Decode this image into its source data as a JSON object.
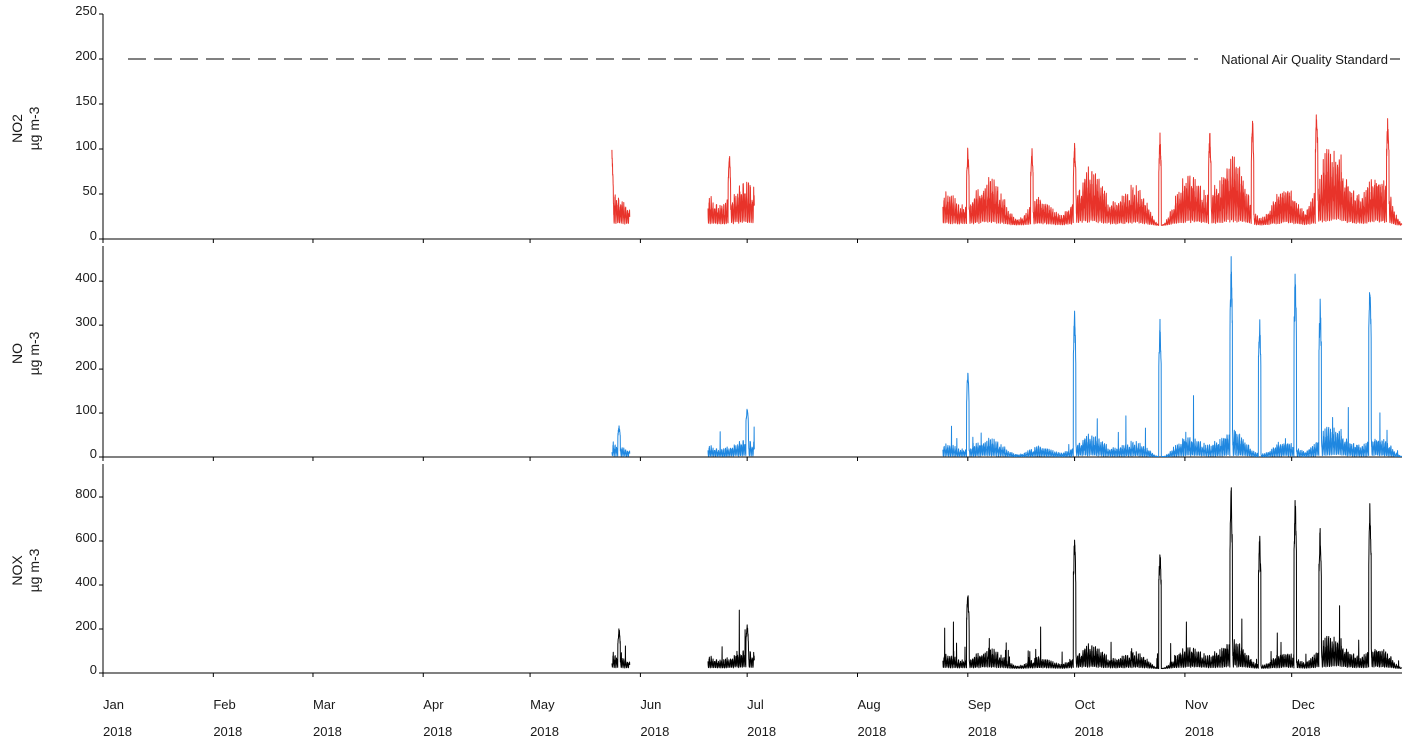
{
  "chart_data": {
    "type": "line",
    "x_axis": {
      "tick_months": [
        "Jan",
        "Feb",
        "Mar",
        "Apr",
        "May",
        "Jun",
        "Jul",
        "Aug",
        "Sep",
        "Oct",
        "Nov",
        "Dec"
      ],
      "tick_year": "2018",
      "tick_dates": [
        "2018-01-01",
        "2018-02-01",
        "2018-03-01",
        "2018-04-01",
        "2018-05-01",
        "2018-06-01",
        "2018-07-01",
        "2018-08-01",
        "2018-09-01",
        "2018-10-01",
        "2018-11-01",
        "2018-12-01"
      ],
      "xlim": [
        "2018-01-01",
        "2018-12-31"
      ]
    },
    "data_periods": [
      [
        "2018-05-24",
        "2018-05-28"
      ],
      [
        "2018-06-20",
        "2018-07-02"
      ],
      [
        "2018-08-25",
        "2018-12-31"
      ]
    ],
    "panels": [
      {
        "name": "NO2",
        "ylabel": "NO2",
        "unit": "µg m-3",
        "color": "#e8332a",
        "ylim": [
          0,
          250
        ],
        "yticks": [
          0,
          50,
          100,
          150,
          200,
          250
        ],
        "typical_range": [
          15,
          90
        ],
        "max_value": 150,
        "reference_line": {
          "value": 200,
          "label": "National Air Quality Standard",
          "style": "dashed"
        },
        "peaks": [
          {
            "date": "2018-05-24",
            "value": 100
          },
          {
            "date": "2018-06-26",
            "value": 100
          },
          {
            "date": "2018-09-01",
            "value": 105
          },
          {
            "date": "2018-09-19",
            "value": 105
          },
          {
            "date": "2018-10-01",
            "value": 110
          },
          {
            "date": "2018-10-25",
            "value": 120
          },
          {
            "date": "2018-11-08",
            "value": 125
          },
          {
            "date": "2018-11-20",
            "value": 140
          },
          {
            "date": "2018-12-08",
            "value": 150
          },
          {
            "date": "2018-12-28",
            "value": 140
          }
        ]
      },
      {
        "name": "NO",
        "ylabel": "NO",
        "unit": "µg m-3",
        "color": "#1f87e0",
        "ylim": [
          0,
          480
        ],
        "yticks": [
          0,
          100,
          200,
          300,
          400
        ],
        "typical_range": [
          0,
          60
        ],
        "max_value": 460,
        "peaks": [
          {
            "date": "2018-05-26",
            "value": 75
          },
          {
            "date": "2018-07-01",
            "value": 120
          },
          {
            "date": "2018-09-01",
            "value": 200
          },
          {
            "date": "2018-10-01",
            "value": 350
          },
          {
            "date": "2018-10-25",
            "value": 320
          },
          {
            "date": "2018-11-14",
            "value": 460
          },
          {
            "date": "2018-11-22",
            "value": 330
          },
          {
            "date": "2018-12-02",
            "value": 440
          },
          {
            "date": "2018-12-09",
            "value": 370
          },
          {
            "date": "2018-12-23",
            "value": 420
          }
        ]
      },
      {
        "name": "NOX",
        "ylabel": "NOX",
        "unit": "µg m-3",
        "color": "#000000",
        "ylim": [
          0,
          950
        ],
        "yticks": [
          0,
          200,
          400,
          600,
          800
        ],
        "typical_range": [
          20,
          150
        ],
        "max_value": 880,
        "peaks": [
          {
            "date": "2018-05-26",
            "value": 210
          },
          {
            "date": "2018-07-01",
            "value": 230
          },
          {
            "date": "2018-09-01",
            "value": 380
          },
          {
            "date": "2018-10-01",
            "value": 650
          },
          {
            "date": "2018-10-25",
            "value": 600
          },
          {
            "date": "2018-11-14",
            "value": 880
          },
          {
            "date": "2018-11-22",
            "value": 650
          },
          {
            "date": "2018-12-02",
            "value": 820
          },
          {
            "date": "2018-12-09",
            "value": 700
          },
          {
            "date": "2018-12-23",
            "value": 800
          }
        ]
      }
    ]
  }
}
